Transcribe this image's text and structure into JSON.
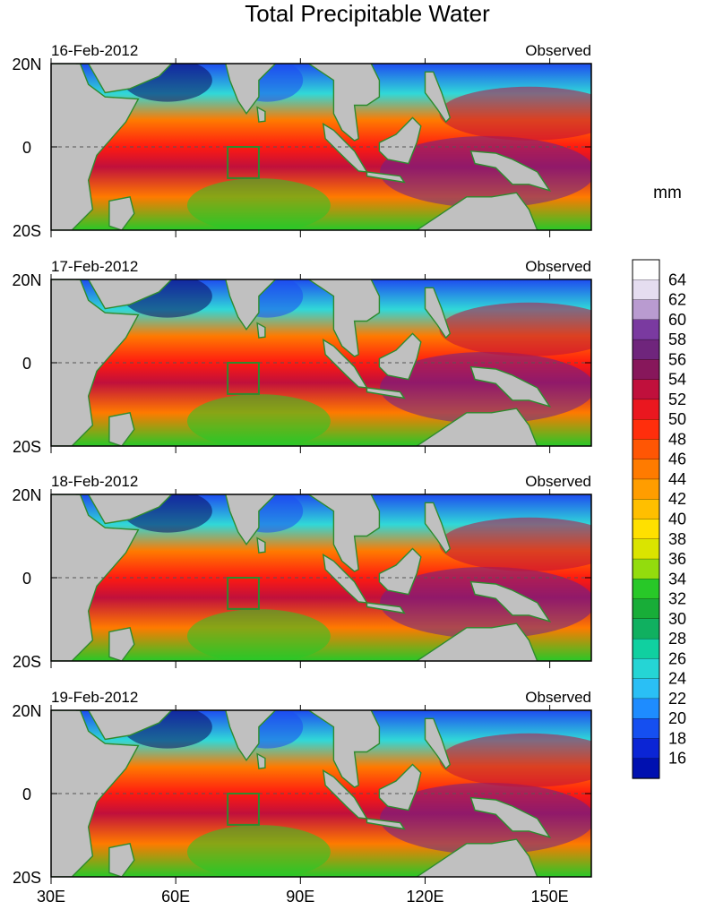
{
  "chart_data": {
    "type": "heatmap",
    "title": "Total Precipitable Water",
    "units_label": "mm",
    "field": "total precipitable water",
    "region": {
      "lon_range": [
        30,
        160
      ],
      "lat_range": [
        -20,
        20
      ]
    },
    "x_ticks": [
      "30E",
      "60E",
      "90E",
      "120E",
      "150E"
    ],
    "x_tick_values": [
      30,
      60,
      90,
      120,
      150
    ],
    "y_ticks": [
      "20N",
      "0",
      "20S"
    ],
    "y_tick_values": [
      20,
      0,
      -20
    ],
    "panels": [
      {
        "date": "16-Feb-2012",
        "label": "Observed"
      },
      {
        "date": "17-Feb-2012",
        "label": "Observed"
      },
      {
        "date": "18-Feb-2012",
        "label": "Observed"
      },
      {
        "date": "19-Feb-2012",
        "label": "Observed"
      }
    ],
    "colorbar": {
      "labels": [
        "64",
        "62",
        "60",
        "58",
        "56",
        "54",
        "52",
        "50",
        "48",
        "46",
        "44",
        "42",
        "40",
        "38",
        "36",
        "34",
        "32",
        "30",
        "28",
        "26",
        "24",
        "22",
        "20",
        "18",
        "16"
      ],
      "min": 14,
      "max": 66,
      "step": 1
    },
    "box_region": {
      "lon": [
        72.5,
        80
      ],
      "lat": [
        -7.5,
        0
      ]
    },
    "colors": {
      "land": "#c0c0c0",
      "coast": "#2e8b2e",
      "very_dry": "#0a0a60",
      "dry": "#1e4cf0",
      "moist_low": "#30d8d8",
      "moderate": "#28c828",
      "mid": "#ffd400",
      "high": "#ff7a00",
      "very_high": "#ff1a10",
      "saturated": "#c0103c",
      "max_purple": "#6a2090",
      "top": "#e8e4f0"
    }
  }
}
